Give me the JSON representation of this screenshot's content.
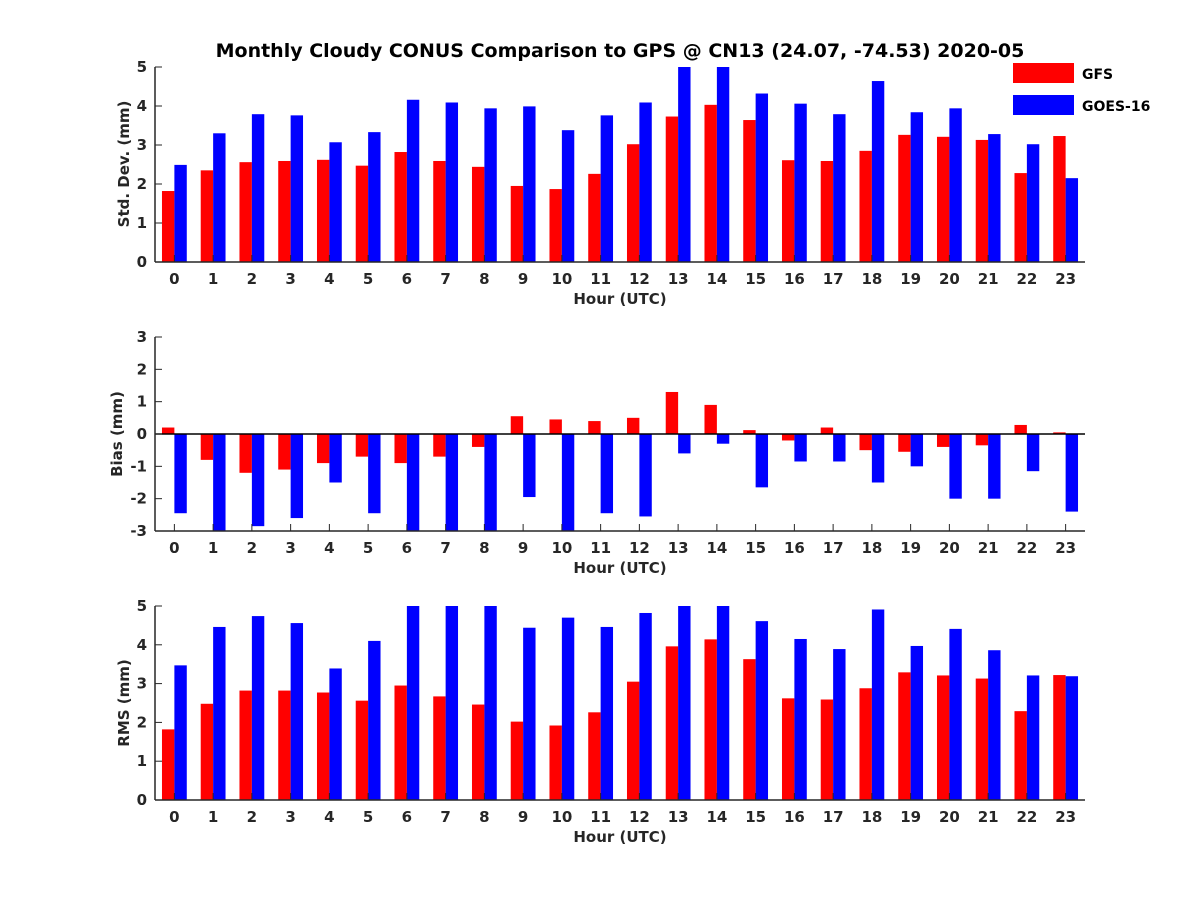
{
  "figure_title": "Monthly Cloudy CONUS Comparison to GPS @ CN13 (24.07, -74.53) 2020-05",
  "legend": [
    {
      "label": "GFS",
      "color": "#ff0000"
    },
    {
      "label": "GOES-16",
      "color": "#0000ff"
    }
  ],
  "legend_placement": "top-right",
  "chart_data": [
    {
      "type": "bar",
      "xlabel": "Hour (UTC)",
      "ylabel": "Std. Dev. (mm)",
      "ylim": [
        0,
        5
      ],
      "yticks": [
        0,
        1,
        2,
        3,
        4,
        5
      ],
      "categories": [
        "0",
        "1",
        "2",
        "3",
        "4",
        "5",
        "6",
        "7",
        "8",
        "9",
        "10",
        "11",
        "12",
        "13",
        "14",
        "15",
        "16",
        "17",
        "18",
        "19",
        "20",
        "21",
        "22",
        "23"
      ],
      "series": [
        {
          "name": "GFS",
          "color": "#ff0000",
          "values": [
            1.82,
            2.35,
            2.56,
            2.59,
            2.62,
            2.47,
            2.82,
            2.59,
            2.44,
            1.95,
            1.87,
            2.26,
            3.02,
            3.73,
            4.03,
            3.64,
            2.61,
            2.59,
            2.85,
            3.26,
            3.21,
            3.13,
            2.28,
            3.23
          ]
        },
        {
          "name": "GOES-16",
          "color": "#0000ff",
          "values": [
            2.49,
            3.3,
            3.79,
            3.76,
            3.07,
            3.33,
            4.16,
            4.09,
            3.94,
            3.99,
            3.38,
            3.76,
            4.09,
            5.0,
            5.0,
            4.32,
            4.06,
            3.79,
            4.64,
            3.84,
            3.94,
            3.28,
            3.02,
            2.15
          ]
        }
      ]
    },
    {
      "type": "bar",
      "xlabel": "Hour (UTC)",
      "ylabel": "Bias (mm)",
      "ylim": [
        -3,
        3
      ],
      "yticks": [
        -3,
        -2,
        -1,
        0,
        1,
        2,
        3
      ],
      "categories": [
        "0",
        "1",
        "2",
        "3",
        "4",
        "5",
        "6",
        "7",
        "8",
        "9",
        "10",
        "11",
        "12",
        "13",
        "14",
        "15",
        "16",
        "17",
        "18",
        "19",
        "20",
        "21",
        "22",
        "23"
      ],
      "series": [
        {
          "name": "GFS",
          "color": "#ff0000",
          "values": [
            0.2,
            -0.8,
            -1.2,
            -1.1,
            -0.9,
            -0.7,
            -0.9,
            -0.7,
            -0.4,
            0.55,
            0.45,
            0.4,
            0.5,
            1.3,
            0.9,
            0.12,
            -0.2,
            0.2,
            -0.5,
            -0.55,
            -0.4,
            -0.35,
            0.28,
            0.05
          ]
        },
        {
          "name": "GOES-16",
          "color": "#0000ff",
          "values": [
            -2.45,
            -3.0,
            -2.85,
            -2.6,
            -1.5,
            -2.45,
            -3.0,
            -3.0,
            -3.0,
            -1.95,
            -3.0,
            -2.45,
            -2.55,
            -0.6,
            -0.3,
            -1.65,
            -0.85,
            -0.85,
            -1.5,
            -1.0,
            -2.0,
            -2.0,
            -1.15,
            -2.4
          ]
        }
      ]
    },
    {
      "type": "bar",
      "xlabel": "Hour (UTC)",
      "ylabel": "RMS (mm)",
      "ylim": [
        0,
        5
      ],
      "yticks": [
        0,
        1,
        2,
        3,
        4,
        5
      ],
      "categories": [
        "0",
        "1",
        "2",
        "3",
        "4",
        "5",
        "6",
        "7",
        "8",
        "9",
        "10",
        "11",
        "12",
        "13",
        "14",
        "15",
        "16",
        "17",
        "18",
        "19",
        "20",
        "21",
        "22",
        "23"
      ],
      "series": [
        {
          "name": "GFS",
          "color": "#ff0000",
          "values": [
            1.82,
            2.48,
            2.82,
            2.82,
            2.77,
            2.56,
            2.95,
            2.67,
            2.46,
            2.02,
            1.92,
            2.26,
            3.05,
            3.96,
            4.14,
            3.63,
            2.62,
            2.59,
            2.88,
            3.29,
            3.21,
            3.13,
            2.29,
            3.22
          ]
        },
        {
          "name": "GOES-16",
          "color": "#0000ff",
          "values": [
            3.47,
            4.46,
            4.74,
            4.56,
            3.39,
            4.1,
            5.0,
            5.0,
            5.0,
            4.44,
            4.7,
            4.46,
            4.82,
            5.0,
            5.0,
            4.61,
            4.15,
            3.89,
            4.91,
            3.97,
            4.41,
            3.86,
            3.21,
            3.19
          ]
        }
      ]
    }
  ]
}
